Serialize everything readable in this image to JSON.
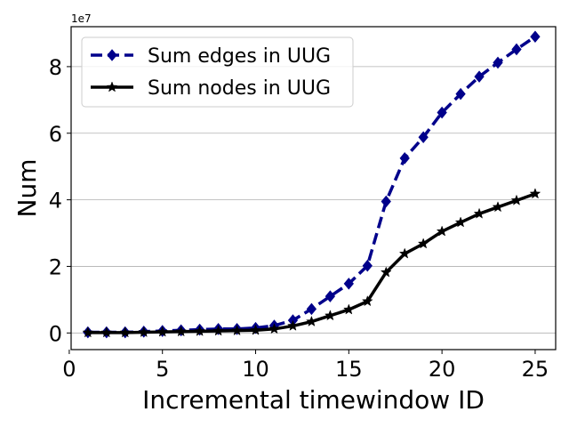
{
  "chart_data": {
    "type": "line",
    "xlabel": "Incremental timewindow ID",
    "ylabel": "Num",
    "y_offset_label": "1e7",
    "xlim": [
      0.1,
      26.1
    ],
    "ylim": [
      -0.5,
      9.2
    ],
    "x_ticks": [
      0,
      5,
      10,
      15,
      20,
      25
    ],
    "y_ticks": [
      0,
      2,
      4,
      6,
      8
    ],
    "grid": "horizontal",
    "legend_position": "top-left",
    "x": [
      1,
      2,
      3,
      4,
      5,
      6,
      7,
      8,
      9,
      10,
      11,
      12,
      13,
      14,
      15,
      16,
      17,
      18,
      19,
      20,
      21,
      22,
      23,
      24,
      25
    ],
    "series": [
      {
        "name": "Sum edges in UUG",
        "color": "#00008b",
        "marker": "diamond",
        "line_style": "dashed",
        "values": [
          0.02,
          0.02,
          0.02,
          0.04,
          0.06,
          0.08,
          0.1,
          0.12,
          0.12,
          0.15,
          0.22,
          0.38,
          0.72,
          1.1,
          1.48,
          2.02,
          3.95,
          5.25,
          5.88,
          6.62,
          7.18,
          7.7,
          8.12,
          8.52,
          8.9
        ]
      },
      {
        "name": "Sum nodes in UUG",
        "color": "#000000",
        "marker": "star",
        "line_style": "solid",
        "values": [
          0.01,
          0.01,
          0.01,
          0.02,
          0.03,
          0.04,
          0.05,
          0.06,
          0.07,
          0.08,
          0.12,
          0.21,
          0.34,
          0.52,
          0.7,
          0.95,
          1.82,
          2.38,
          2.68,
          3.05,
          3.32,
          3.58,
          3.78,
          3.98,
          4.18
        ]
      }
    ]
  }
}
